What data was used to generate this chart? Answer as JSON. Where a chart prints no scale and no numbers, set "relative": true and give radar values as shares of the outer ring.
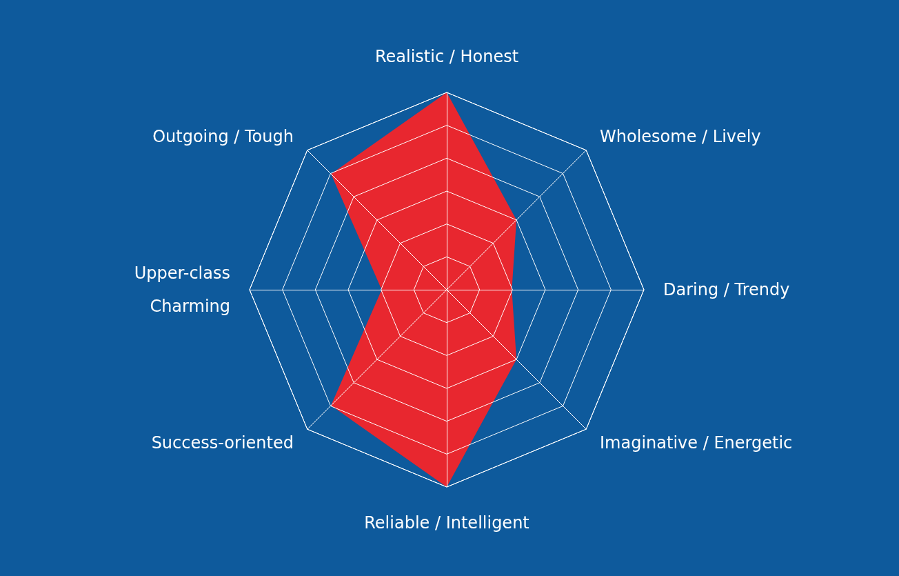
{
  "chart_data": {
    "type": "radar",
    "relative": true,
    "categories": [
      "Realistic / Honest",
      "Wholesome / Lively",
      "Daring / Trendy",
      "Imaginative / Energetic",
      "Reliable / Intelligent",
      "Success-oriented",
      "Upper-class\nCharming",
      "Outgoing / Tough"
    ],
    "series": [
      {
        "color": "#e8272f",
        "values": [
          1,
          0.5,
          0.33,
          0.5,
          1,
          0.83,
          0.33,
          0.83
        ]
      }
    ]
  }
}
